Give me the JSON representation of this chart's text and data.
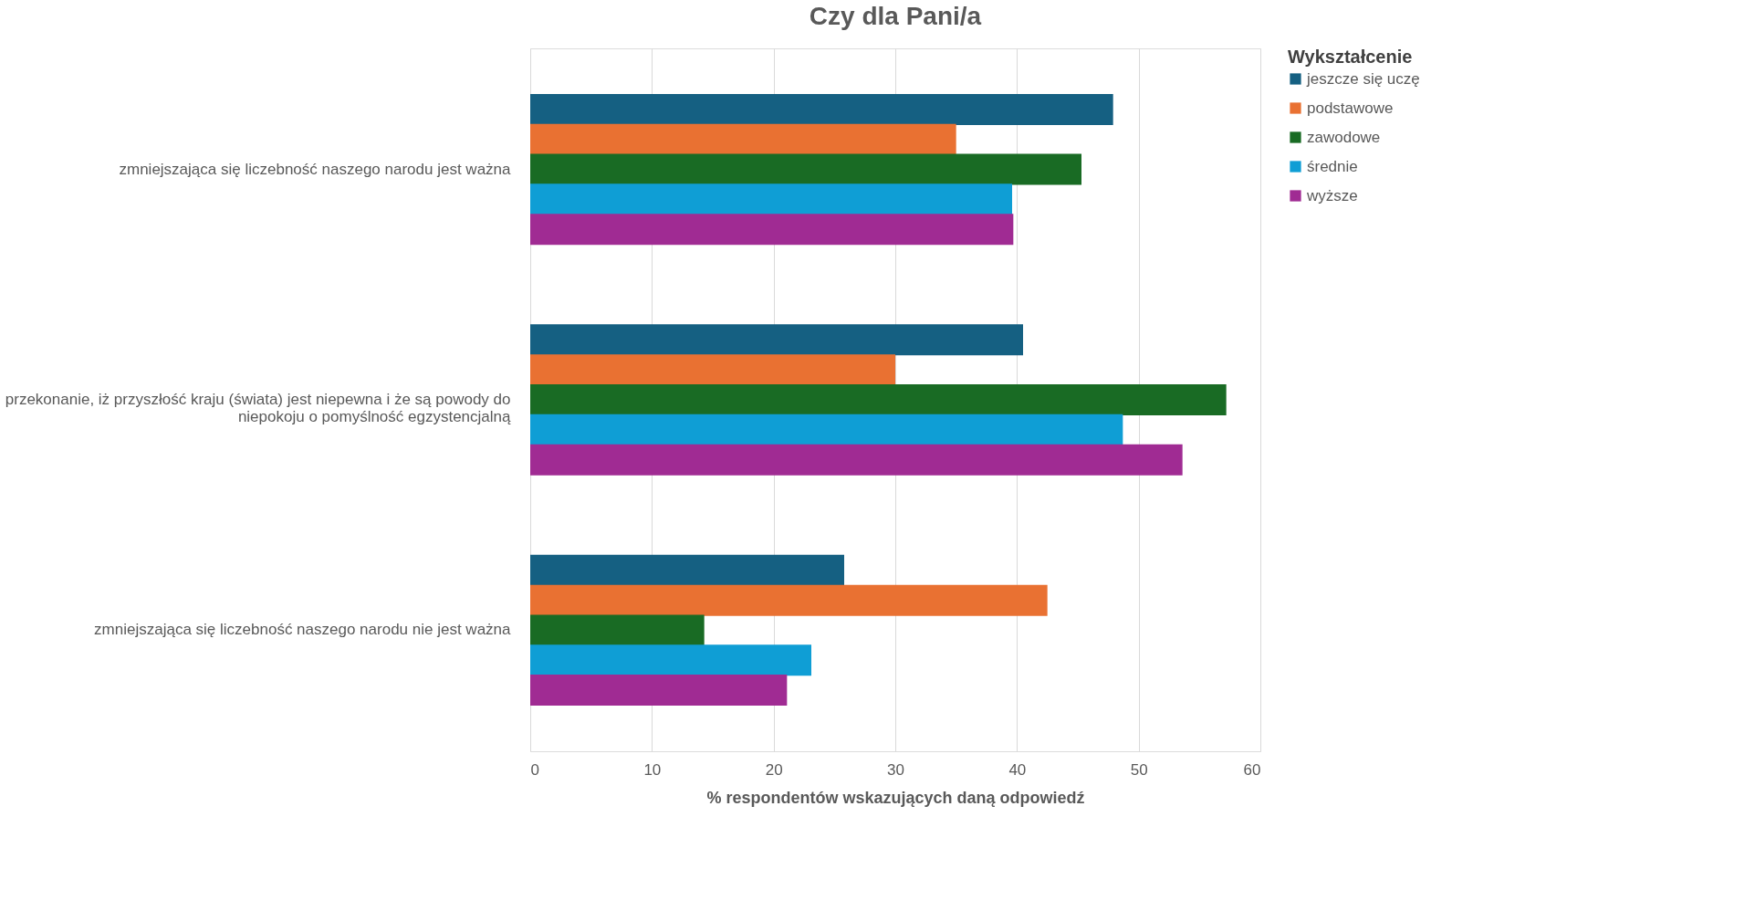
{
  "chart_data": {
    "type": "bar",
    "orientation": "horizontal",
    "title": "Czy dla Pani/a",
    "xlabel": "% respondentów wskazujących daną odpowiedź",
    "legend_title": "Wykształcenie",
    "legend": "right",
    "grid": "x",
    "categories": [
      "zmniejszająca się liczebność naszego narodu jest ważna",
      "przekonanie, iż przyszłość kraju (świata) jest niepewna i że są powody do niepokoju o pomyślność egzystencjalną",
      "zmniejszająca się liczebność naszego narodu nie jest ważna"
    ],
    "series": [
      {
        "name": "jeszcze się uczę",
        "color": "#156082",
        "values": [
          47.9,
          40.5,
          25.8
        ]
      },
      {
        "name": "podstawowe",
        "color": "#e97132",
        "values": [
          35.0,
          30.0,
          42.5
        ]
      },
      {
        "name": "zawodowe",
        "color": "#196b24",
        "values": [
          45.3,
          57.2,
          14.3
        ]
      },
      {
        "name": "średnie",
        "color": "#0f9ed5",
        "values": [
          39.6,
          48.7,
          23.1
        ]
      },
      {
        "name": "wyższe",
        "color": "#a02b93",
        "values": [
          39.7,
          53.6,
          21.1
        ]
      }
    ],
    "xlim": [
      0,
      60
    ],
    "xticks": [
      0,
      10,
      20,
      30,
      40,
      50,
      60
    ]
  }
}
